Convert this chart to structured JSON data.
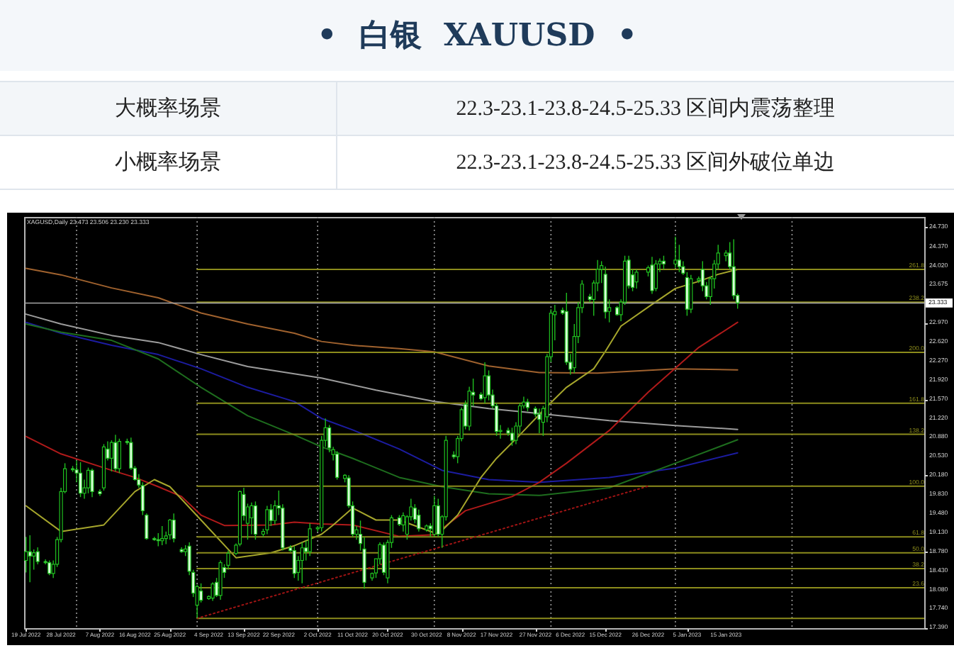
{
  "chart_data": {
    "type": "candlestick",
    "title": "• 白银 XAUUSD •",
    "annotations": [
      "大概率场景",
      "22.3-23.1-23.8-24.5-25.33 区间内震荡整理",
      "小概率场景",
      "22.3-23.1-23.8-24.5-25.33 区间外破位单边",
      "XAGUSD,Daily  23.473 23.506 23.230 23.333"
    ],
    "xlim": [
      "2022-07-18T12:00",
      "2023-03-07"
    ],
    "xticks": [
      {
        "value": "2022-07-19",
        "label": "19 Jul 2022"
      },
      {
        "value": "2022-07-28",
        "label": "28 Jul 2022"
      },
      {
        "value": "2022-08-07",
        "label": "7 Aug 2022"
      },
      {
        "value": "2022-08-16",
        "label": "16 Aug 2022"
      },
      {
        "value": "2022-08-25",
        "label": "25 Aug 2022"
      },
      {
        "value": "2022-09-04",
        "label": "4 Sep 2022"
      },
      {
        "value": "2022-09-13",
        "label": "13 Sep 2022"
      },
      {
        "value": "2022-09-22",
        "label": "22 Sep 2022"
      },
      {
        "value": "2022-10-02",
        "label": "2 Oct 2022"
      },
      {
        "value": "2022-10-11",
        "label": "11 Oct 2022"
      },
      {
        "value": "2022-10-20",
        "label": "20 Oct 2022"
      },
      {
        "value": "2022-10-30",
        "label": "30 Oct 2022"
      },
      {
        "value": "2022-11-08",
        "label": "8 Nov 2022"
      },
      {
        "value": "2022-11-17",
        "label": "17 Nov 2022"
      },
      {
        "value": "2022-11-27",
        "label": "27 Nov 2022"
      },
      {
        "value": "2022-12-06",
        "label": "6 Dec 2022"
      },
      {
        "value": "2022-12-15",
        "label": "15 Dec 2022"
      },
      {
        "value": "2022-12-26",
        "label": "26 Dec 2022"
      },
      {
        "value": "2023-01-05",
        "label": "5 Jan 2023"
      },
      {
        "value": "2023-01-15",
        "label": "15 Jan 2023"
      }
    ],
    "ylim": [
      17.38,
      24.91
    ],
    "yticks": [
      {
        "value": 24.73,
        "label": "24.730"
      },
      {
        "value": 24.37,
        "label": "24.370"
      },
      {
        "value": 24.02,
        "label": "24.020"
      },
      {
        "value": 23.675,
        "label": "23.675"
      },
      {
        "value": 22.97,
        "label": "22.970"
      },
      {
        "value": 22.62,
        "label": "22.620"
      },
      {
        "value": 22.27,
        "label": "22.270"
      },
      {
        "value": 21.92,
        "label": "21.920"
      },
      {
        "value": 21.57,
        "label": "21.570"
      },
      {
        "value": 21.22,
        "label": "21.220"
      },
      {
        "value": 20.88,
        "label": "20.880"
      },
      {
        "value": 20.53,
        "label": "20.530"
      },
      {
        "value": 20.18,
        "label": "20.180"
      },
      {
        "value": 19.83,
        "label": "19.830"
      },
      {
        "value": 19.48,
        "label": "19.480"
      },
      {
        "value": 19.13,
        "label": "19.130"
      },
      {
        "value": 18.78,
        "label": "18.780"
      },
      {
        "value": 18.43,
        "label": "18.430"
      },
      {
        "value": 18.08,
        "label": "18.080"
      },
      {
        "value": 17.74,
        "label": "17.740"
      },
      {
        "value": 17.39,
        "label": "17.390"
      }
    ],
    "ref_lines": [
      {
        "axis": "x",
        "value": "2022-08-01",
        "color": "#9a9a9a",
        "line_style": "dotted"
      },
      {
        "axis": "x",
        "value": "2022-09-01",
        "color": "#9a9a9a",
        "line_style": "dotted"
      },
      {
        "axis": "x",
        "value": "2022-10-02",
        "color": "#9a9a9a",
        "line_style": "dotted"
      },
      {
        "axis": "x",
        "value": "2022-11-01",
        "color": "#9a9a9a",
        "line_style": "dotted"
      },
      {
        "axis": "x",
        "value": "2022-12-01",
        "color": "#9a9a9a",
        "line_style": "dotted"
      },
      {
        "axis": "x",
        "value": "2023-01-02",
        "color": "#9a9a9a",
        "line_style": "dotted"
      },
      {
        "axis": "x",
        "value": "2023-02-01",
        "color": "#9a9a9a",
        "line_style": "dotted"
      },
      {
        "axis": "y",
        "value": 23.333,
        "label": "23.333",
        "color": "#a8a8a8"
      }
    ],
    "series": [
      {
        "type": "line",
        "color": "#a0622e",
        "x": [
          "2022-07-19",
          "2022-07-28",
          "2022-08-10",
          "2022-08-22",
          "2022-09-02",
          "2022-09-14",
          "2022-09-26",
          "2022-10-03",
          "2022-10-11",
          "2022-10-23",
          "2022-11-01",
          "2022-11-15",
          "2022-11-28",
          "2022-12-13",
          "2023-01-02",
          "2023-01-18"
        ],
        "values": [
          23.97,
          23.85,
          23.61,
          23.43,
          23.15,
          22.95,
          22.78,
          22.63,
          22.56,
          22.5,
          22.44,
          22.18,
          22.06,
          22.05,
          22.13,
          22.11
        ]
      },
      {
        "type": "line",
        "color": "#9c9c9c",
        "x": [
          "2022-07-19",
          "2022-07-28",
          "2022-08-10",
          "2022-08-22",
          "2022-09-02",
          "2022-09-14",
          "2022-10-03",
          "2022-10-17",
          "2022-11-01",
          "2022-11-15",
          "2022-11-28",
          "2022-12-16",
          "2023-01-02",
          "2023-01-18"
        ],
        "values": [
          23.13,
          22.95,
          22.74,
          22.61,
          22.39,
          22.17,
          21.96,
          21.74,
          21.53,
          21.4,
          21.31,
          21.18,
          21.09,
          21.02
        ]
      },
      {
        "type": "line",
        "color": "#1c1ca0",
        "x": [
          "2022-07-19",
          "2022-07-28",
          "2022-08-10",
          "2022-08-22",
          "2022-09-02",
          "2022-09-14",
          "2022-09-26",
          "2022-10-03",
          "2022-10-11",
          "2022-10-23",
          "2022-11-03",
          "2022-11-15",
          "2022-11-28",
          "2022-12-16",
          "2023-01-02",
          "2023-01-18"
        ],
        "values": [
          22.98,
          22.78,
          22.56,
          22.39,
          22.13,
          21.79,
          21.53,
          21.22,
          21.01,
          20.66,
          20.27,
          20.1,
          20.05,
          20.14,
          20.31,
          20.59
        ]
      },
      {
        "type": "line",
        "color": "#1e6e1e",
        "x": [
          "2022-07-19",
          "2022-07-28",
          "2022-08-10",
          "2022-08-22",
          "2022-09-02",
          "2022-09-14",
          "2022-09-26",
          "2022-10-03",
          "2022-10-11",
          "2022-10-23",
          "2022-11-03",
          "2022-11-15",
          "2022-11-28",
          "2022-12-16",
          "2023-01-02",
          "2023-01-18"
        ],
        "values": [
          22.95,
          22.8,
          22.65,
          22.31,
          21.79,
          21.27,
          20.92,
          20.7,
          20.49,
          20.14,
          19.97,
          19.84,
          19.81,
          19.95,
          20.4,
          20.83
        ]
      },
      {
        "type": "line",
        "color": "#b01a1a",
        "x": [
          "2022-07-19",
          "2022-07-28",
          "2022-08-10",
          "2022-08-16",
          "2022-08-22",
          "2022-08-28",
          "2022-09-02",
          "2022-09-08",
          "2022-09-20",
          "2022-09-26",
          "2022-10-03",
          "2022-10-11",
          "2022-10-23",
          "2022-11-01",
          "2022-11-09",
          "2022-11-21",
          "2022-11-28",
          "2022-12-05",
          "2022-12-16",
          "2022-12-26",
          "2023-01-08",
          "2023-01-18"
        ],
        "values": [
          20.89,
          20.57,
          20.27,
          20.14,
          19.97,
          19.79,
          19.45,
          19.26,
          19.27,
          19.32,
          19.29,
          19.27,
          19.06,
          19.09,
          19.53,
          19.79,
          20.05,
          20.4,
          21.0,
          21.7,
          22.52,
          22.98
        ]
      },
      {
        "type": "line",
        "color": "#a6a62c",
        "x": [
          "2022-07-19",
          "2022-07-28",
          "2022-08-08",
          "2022-08-16",
          "2022-08-21",
          "2022-08-25",
          "2022-09-02",
          "2022-09-11",
          "2022-09-20",
          "2022-09-26",
          "2022-10-03",
          "2022-10-06",
          "2022-10-11",
          "2022-10-17",
          "2022-10-23",
          "2022-11-02",
          "2022-11-07",
          "2022-11-13",
          "2022-11-17",
          "2022-11-23",
          "2022-11-30",
          "2022-12-05",
          "2022-12-12",
          "2022-12-15",
          "2022-12-19",
          "2022-12-26",
          "2023-01-02",
          "2023-01-08",
          "2023-01-13",
          "2023-01-18"
        ],
        "values": [
          19.62,
          19.15,
          19.27,
          19.88,
          20.1,
          19.97,
          19.36,
          18.67,
          18.76,
          18.89,
          19.1,
          19.27,
          19.58,
          19.36,
          19.36,
          19.1,
          19.45,
          20.14,
          20.49,
          20.92,
          21.44,
          21.79,
          22.13,
          22.45,
          22.91,
          23.26,
          23.6,
          23.73,
          23.86,
          23.95
        ]
      },
      {
        "type": "line",
        "name": "261.8",
        "color": "#8c8c1c",
        "x": [
          "2022-09-01",
          "2023-03-07"
        ],
        "values": [
          23.95,
          23.95
        ]
      },
      {
        "type": "line",
        "name": "238.2",
        "color": "#8c8c1c",
        "x": [
          "2022-09-01",
          "2023-03-07"
        ],
        "values": [
          23.35,
          23.35
        ]
      },
      {
        "type": "line",
        "name": "200.0",
        "color": "#8c8c1c",
        "x": [
          "2022-09-01",
          "2023-03-07"
        ],
        "values": [
          22.43,
          22.43
        ]
      },
      {
        "type": "line",
        "name": "161.8",
        "color": "#8c8c1c",
        "x": [
          "2022-09-01",
          "2023-03-07"
        ],
        "values": [
          21.5,
          21.5
        ]
      },
      {
        "type": "line",
        "name": "138.2",
        "color": "#8c8c1c",
        "x": [
          "2022-09-01",
          "2023-03-07"
        ],
        "values": [
          20.93,
          20.93
        ]
      },
      {
        "type": "line",
        "name": "100.0",
        "color": "#8c8c1c",
        "x": [
          "2022-09-01",
          "2023-03-07"
        ],
        "values": [
          19.98,
          19.98
        ]
      },
      {
        "type": "line",
        "name": "61.8",
        "color": "#8c8c1c",
        "x": [
          "2022-09-01",
          "2023-03-07"
        ],
        "values": [
          19.05,
          19.05
        ]
      },
      {
        "type": "line",
        "name": "50.0",
        "color": "#8c8c1c",
        "x": [
          "2022-09-01",
          "2023-03-07"
        ],
        "values": [
          18.76,
          18.76
        ]
      },
      {
        "type": "line",
        "name": "38.2",
        "color": "#8c8c1c",
        "x": [
          "2022-09-01",
          "2023-03-07"
        ],
        "values": [
          18.47,
          18.47
        ]
      },
      {
        "type": "line",
        "name": "23.6",
        "color": "#8c8c1c",
        "x": [
          "2022-09-01",
          "2023-03-07"
        ],
        "values": [
          18.12,
          18.12
        ]
      },
      {
        "type": "line",
        "color": "#8c8c1c",
        "x": [
          "2022-09-01",
          "2023-03-07"
        ],
        "values": [
          17.56,
          17.56
        ]
      },
      {
        "type": "line",
        "color": "#a01414",
        "line_style": "dotted",
        "x": [
          "2022-09-01",
          "2022-12-26"
        ],
        "values": [
          17.56,
          19.98
        ]
      },
      {
        "type": "candlestick",
        "color": "#1fbf1f",
        "x": [
          "2022-07-19",
          "2022-07-20",
          "2022-07-21",
          "2022-07-22",
          "2022-07-24",
          "2022-07-25",
          "2022-07-26",
          "2022-07-27",
          "2022-07-28",
          "2022-07-29",
          "2022-07-31",
          "2022-08-01",
          "2022-08-02",
          "2022-08-03",
          "2022-08-04",
          "2022-08-05",
          "2022-08-07",
          "2022-08-08",
          "2022-08-09",
          "2022-08-10",
          "2022-08-11",
          "2022-08-12",
          "2022-08-14",
          "2022-08-15",
          "2022-08-16",
          "2022-08-17",
          "2022-08-18",
          "2022-08-19",
          "2022-08-21",
          "2022-08-22",
          "2022-08-23",
          "2022-08-24",
          "2022-08-25",
          "2022-08-26",
          "2022-08-28",
          "2022-08-29",
          "2022-08-30",
          "2022-08-31",
          "2022-09-01",
          "2022-09-02",
          "2022-09-04",
          "2022-09-05",
          "2022-09-06",
          "2022-09-07",
          "2022-09-08",
          "2022-09-09",
          "2022-09-11",
          "2022-09-12",
          "2022-09-13",
          "2022-09-14",
          "2022-09-15",
          "2022-09-16",
          "2022-09-18",
          "2022-09-19",
          "2022-09-20",
          "2022-09-21",
          "2022-09-22",
          "2022-09-23",
          "2022-09-25",
          "2022-09-26",
          "2022-09-27",
          "2022-09-28",
          "2022-09-29",
          "2022-09-30",
          "2022-10-02",
          "2022-10-03",
          "2022-10-04",
          "2022-10-05",
          "2022-10-06",
          "2022-10-07",
          "2022-10-09",
          "2022-10-10",
          "2022-10-11",
          "2022-10-12",
          "2022-10-13",
          "2022-10-14",
          "2022-10-16",
          "2022-10-17",
          "2022-10-18",
          "2022-10-19",
          "2022-10-20",
          "2022-10-21",
          "2022-10-23",
          "2022-10-24",
          "2022-10-25",
          "2022-10-26",
          "2022-10-27",
          "2022-10-28",
          "2022-10-30",
          "2022-10-31",
          "2022-11-01",
          "2022-11-02",
          "2022-11-03",
          "2022-11-04",
          "2022-11-06",
          "2022-11-07",
          "2022-11-08",
          "2022-11-09",
          "2022-11-10",
          "2022-11-11",
          "2022-11-13",
          "2022-11-14",
          "2022-11-15",
          "2022-11-16",
          "2022-11-17",
          "2022-11-18",
          "2022-11-20",
          "2022-11-21",
          "2022-11-22",
          "2022-11-23",
          "2022-11-24",
          "2022-11-25",
          "2022-11-27",
          "2022-11-28",
          "2022-11-29",
          "2022-11-30",
          "2022-12-01",
          "2022-12-02",
          "2022-12-04",
          "2022-12-05",
          "2022-12-06",
          "2022-12-07",
          "2022-12-08",
          "2022-12-09",
          "2022-12-11",
          "2022-12-12",
          "2022-12-13",
          "2022-12-14",
          "2022-12-15",
          "2022-12-16",
          "2022-12-18",
          "2022-12-19",
          "2022-12-20",
          "2022-12-21",
          "2022-12-22",
          "2022-12-23",
          "2022-12-26",
          "2022-12-27",
          "2022-12-28",
          "2022-12-29",
          "2022-12-30",
          "2023-01-02",
          "2023-01-03",
          "2023-01-04",
          "2023-01-05",
          "2023-01-06",
          "2023-01-08",
          "2023-01-09",
          "2023-01-10",
          "2023-01-11",
          "2023-01-12",
          "2023-01-13",
          "2023-01-15",
          "2023-01-16",
          "2023-01-17",
          "2023-01-18"
        ],
        "ohlc": [
          [
            18.62,
            19.05,
            18.4,
            18.78
          ],
          [
            18.78,
            19.08,
            18.22,
            18.7
          ],
          [
            18.7,
            18.82,
            18.45,
            18.76
          ],
          [
            18.78,
            18.86,
            18.55,
            18.6
          ],
          [
            18.6,
            18.64,
            18.55,
            18.58
          ],
          [
            18.58,
            18.62,
            18.35,
            18.38
          ],
          [
            18.38,
            18.62,
            18.3,
            18.55
          ],
          [
            18.55,
            19.05,
            18.5,
            19.0
          ],
          [
            19.0,
            19.95,
            18.95,
            19.88
          ],
          [
            19.88,
            20.4,
            19.85,
            20.3
          ],
          [
            20.3,
            20.35,
            20.24,
            20.28
          ],
          [
            20.28,
            20.45,
            20.05,
            20.22
          ],
          [
            20.22,
            20.42,
            19.78,
            19.85
          ],
          [
            19.85,
            20.1,
            19.75,
            19.95
          ],
          [
            19.95,
            20.32,
            19.85,
            20.27
          ],
          [
            20.27,
            20.3,
            19.78,
            19.88
          ],
          [
            19.88,
            19.92,
            19.8,
            19.84
          ],
          [
            19.95,
            20.75,
            19.9,
            20.7
          ],
          [
            20.66,
            20.8,
            20.45,
            20.49
          ],
          [
            20.49,
            20.82,
            20.25,
            20.78
          ],
          [
            20.78,
            20.92,
            20.25,
            20.3
          ],
          [
            20.3,
            20.85,
            20.22,
            20.8
          ],
          [
            20.8,
            20.85,
            20.74,
            20.78
          ],
          [
            20.78,
            20.87,
            20.28,
            20.31
          ],
          [
            20.31,
            20.35,
            20.08,
            20.1
          ],
          [
            20.1,
            20.2,
            19.95,
            20.0
          ],
          [
            19.99,
            20.05,
            19.45,
            19.53
          ],
          [
            19.45,
            19.48,
            19.0,
            19.02
          ],
          [
            19.02,
            19.05,
            18.98,
            19.0
          ],
          [
            19.0,
            19.12,
            18.88,
            18.98
          ],
          [
            18.98,
            19.25,
            18.9,
            19.02
          ],
          [
            19.02,
            19.15,
            18.92,
            19.07
          ],
          [
            19.09,
            19.38,
            19.0,
            19.36
          ],
          [
            19.36,
            19.48,
            18.95,
            19.02
          ],
          [
            18.82,
            18.86,
            18.76,
            18.78
          ],
          [
            18.78,
            18.9,
            18.7,
            18.83
          ],
          [
            18.88,
            18.95,
            18.35,
            18.42
          ],
          [
            18.4,
            18.45,
            17.95,
            18.02
          ],
          [
            17.8,
            18.18,
            17.56,
            18.14
          ],
          [
            18.06,
            18.2,
            17.85,
            17.89
          ],
          [
            17.92,
            17.98,
            17.9,
            17.96
          ],
          [
            17.93,
            18.22,
            17.88,
            18.19
          ],
          [
            18.22,
            18.3,
            17.95,
            17.98
          ],
          [
            17.98,
            18.62,
            17.9,
            18.58
          ],
          [
            18.49,
            18.55,
            18.3,
            18.4
          ],
          [
            18.53,
            18.8,
            18.45,
            18.75
          ],
          [
            18.75,
            18.93,
            18.72,
            18.9
          ],
          [
            18.92,
            19.9,
            18.88,
            19.88
          ],
          [
            19.83,
            19.95,
            19.35,
            19.44
          ],
          [
            19.3,
            19.66,
            19.0,
            19.6
          ],
          [
            19.4,
            19.68,
            19.1,
            19.62
          ],
          [
            19.62,
            19.7,
            19.0,
            19.1
          ],
          [
            19.1,
            19.2,
            19.05,
            19.15
          ],
          [
            19.18,
            19.62,
            19.1,
            19.55
          ],
          [
            19.55,
            19.65,
            19.25,
            19.35
          ],
          [
            19.35,
            19.72,
            19.28,
            19.62
          ],
          [
            19.62,
            19.9,
            19.45,
            19.58
          ],
          [
            19.58,
            19.65,
            18.8,
            18.85
          ],
          [
            18.85,
            18.9,
            18.78,
            18.8
          ],
          [
            18.8,
            18.88,
            18.3,
            18.38
          ],
          [
            18.4,
            18.7,
            18.25,
            18.62
          ],
          [
            18.62,
            18.95,
            18.2,
            18.85
          ],
          [
            18.85,
            18.98,
            18.62,
            18.78
          ],
          [
            18.78,
            19.3,
            18.7,
            19.2
          ],
          [
            19.2,
            19.25,
            19.15,
            19.22
          ],
          [
            19.22,
            20.9,
            19.15,
            20.82
          ],
          [
            20.82,
            21.22,
            20.7,
            21.05
          ],
          [
            21.05,
            21.1,
            20.6,
            20.68
          ],
          [
            20.56,
            20.7,
            20.45,
            20.65
          ],
          [
            20.57,
            20.62,
            20.1,
            20.14
          ],
          [
            20.12,
            20.2,
            20.05,
            20.18
          ],
          [
            20.13,
            20.18,
            19.58,
            19.62
          ],
          [
            19.62,
            19.7,
            19.05,
            19.1
          ],
          [
            19.1,
            19.25,
            19.0,
            19.18
          ],
          [
            19.1,
            19.35,
            18.8,
            18.93
          ],
          [
            18.83,
            19.05,
            18.1,
            18.22
          ],
          [
            18.3,
            18.4,
            18.25,
            18.38
          ],
          [
            18.39,
            18.65,
            18.3,
            18.65
          ],
          [
            18.65,
            18.95,
            18.55,
            18.91
          ],
          [
            18.9,
            18.95,
            18.35,
            18.4
          ],
          [
            18.3,
            19.0,
            18.2,
            18.95
          ],
          [
            18.95,
            19.45,
            18.85,
            19.4
          ],
          [
            19.4,
            19.45,
            19.25,
            19.28
          ],
          [
            19.27,
            19.5,
            19.15,
            19.44
          ],
          [
            19.1,
            19.45,
            19.0,
            19.42
          ],
          [
            19.42,
            19.75,
            19.35,
            19.6
          ],
          [
            19.58,
            19.65,
            19.3,
            19.37
          ],
          [
            19.45,
            19.55,
            19.15,
            19.2
          ],
          [
            19.18,
            19.28,
            19.15,
            19.25
          ],
          [
            19.25,
            19.3,
            19.05,
            19.2
          ],
          [
            19.1,
            19.8,
            19.05,
            19.62
          ],
          [
            19.62,
            19.75,
            19.05,
            19.1
          ],
          [
            19.1,
            19.45,
            18.85,
            19.42
          ],
          [
            19.42,
            20.9,
            19.35,
            20.82
          ],
          [
            20.55,
            20.62,
            20.48,
            20.52
          ],
          [
            20.52,
            20.9,
            20.4,
            20.85
          ],
          [
            20.85,
            21.42,
            20.8,
            21.38
          ],
          [
            21.48,
            21.55,
            21.02,
            21.08
          ],
          [
            21.08,
            21.8,
            21.0,
            21.72
          ],
          [
            21.7,
            21.95,
            21.45,
            21.65
          ],
          [
            21.66,
            21.7,
            21.55,
            21.58
          ],
          [
            21.6,
            22.25,
            21.5,
            22.0
          ],
          [
            22.0,
            22.1,
            21.55,
            21.65
          ],
          [
            21.65,
            21.75,
            21.4,
            21.45
          ],
          [
            21.45,
            21.5,
            20.9,
            20.98
          ],
          [
            20.98,
            21.1,
            20.85,
            21.0
          ],
          [
            21.0,
            21.05,
            20.9,
            20.95
          ],
          [
            20.95,
            21.05,
            20.72,
            20.82
          ],
          [
            20.82,
            21.15,
            20.75,
            21.08
          ],
          [
            21.08,
            21.5,
            20.95,
            21.45
          ],
          [
            21.45,
            21.62,
            21.4,
            21.52
          ],
          [
            21.52,
            21.58,
            21.35,
            21.42
          ],
          [
            21.4,
            21.44,
            21.25,
            21.3
          ],
          [
            21.3,
            21.4,
            20.95,
            21.2
          ],
          [
            21.15,
            21.45,
            20.9,
            21.4
          ],
          [
            21.25,
            22.4,
            21.15,
            22.35
          ],
          [
            22.35,
            23.22,
            22.25,
            23.15
          ],
          [
            23.12,
            23.3,
            22.65,
            23.18
          ],
          [
            23.2,
            23.25,
            23.12,
            23.15
          ],
          [
            23.18,
            23.52,
            22.2,
            22.25
          ],
          [
            22.25,
            22.4,
            22.02,
            22.12
          ],
          [
            22.15,
            22.95,
            22.05,
            22.72
          ],
          [
            22.72,
            23.35,
            22.6,
            23.25
          ],
          [
            23.25,
            23.75,
            23.15,
            23.68
          ],
          [
            23.45,
            23.5,
            23.35,
            23.4
          ],
          [
            23.4,
            23.75,
            23.1,
            23.7
          ],
          [
            23.7,
            24.12,
            23.55,
            23.95
          ],
          [
            23.95,
            24.1,
            23.7,
            24.02
          ],
          [
            23.86,
            24.0,
            23.05,
            23.17
          ],
          [
            23.18,
            23.4,
            22.98,
            23.25
          ],
          [
            23.25,
            23.28,
            23.1,
            23.12
          ],
          [
            23.12,
            23.4,
            23.0,
            23.35
          ],
          [
            23.35,
            24.2,
            23.3,
            24.1
          ],
          [
            24.12,
            24.2,
            23.6,
            23.65
          ],
          [
            23.85,
            23.95,
            23.55,
            23.62
          ],
          [
            23.72,
            23.95,
            23.6,
            23.9
          ],
          [
            23.9,
            24.02,
            23.82,
            23.98
          ],
          [
            24.03,
            24.18,
            23.5,
            23.56
          ],
          [
            23.6,
            24.12,
            23.55,
            24.05
          ],
          [
            24.05,
            24.15,
            23.9,
            24.1
          ],
          [
            24.1,
            24.2,
            23.95,
            24.05
          ],
          [
            24.05,
            24.55,
            23.98,
            24.12
          ],
          [
            24.12,
            24.4,
            23.9,
            24.0
          ],
          [
            24.0,
            24.1,
            23.85,
            23.88
          ],
          [
            23.8,
            23.9,
            23.1,
            23.22
          ],
          [
            23.22,
            23.85,
            23.15,
            23.78
          ],
          [
            23.75,
            23.82,
            23.7,
            23.78
          ],
          [
            23.95,
            24.1,
            23.55,
            23.65
          ],
          [
            23.65,
            23.72,
            23.4,
            23.45
          ],
          [
            23.45,
            23.82,
            23.3,
            23.78
          ],
          [
            23.78,
            24.12,
            23.6,
            24.05
          ],
          [
            24.05,
            24.4,
            23.95,
            24.25
          ],
          [
            24.2,
            24.3,
            24.1,
            24.25
          ],
          [
            24.25,
            24.45,
            23.95,
            24.0
          ],
          [
            24.0,
            24.5,
            23.4,
            23.47
          ],
          [
            23.473,
            23.506,
            23.23,
            23.333
          ]
        ],
        "colors": [
          "#000000",
          "#d9ffd9",
          "#000000",
          "#d9ffd9",
          "#d9ffd9",
          "#d9ffd9",
          "#000000",
          "#000000",
          "#000000",
          "#000000",
          "#d9ffd9",
          "#d9ffd9",
          "#d9ffd9",
          "#000000",
          "#000000",
          "#d9ffd9",
          "#d9ffd9",
          "#000000",
          "#d9ffd9",
          "#000000",
          "#d9ffd9",
          "#000000",
          "#d9ffd9",
          "#d9ffd9",
          "#d9ffd9",
          "#d9ffd9",
          "#d9ffd9",
          "#d9ffd9",
          "#d9ffd9",
          "#d9ffd9",
          "#000000",
          "#000000",
          "#000000",
          "#d9ffd9",
          "#d9ffd9",
          "#000000",
          "#d9ffd9",
          "#d9ffd9",
          "#000000",
          "#d9ffd9",
          "#000000",
          "#000000",
          "#d9ffd9",
          "#000000",
          "#d9ffd9",
          "#000000",
          "#000000",
          "#000000",
          "#d9ffd9",
          "#000000",
          "#000000",
          "#d9ffd9",
          "#000000",
          "#000000",
          "#d9ffd9",
          "#000000",
          "#d9ffd9",
          "#d9ffd9",
          "#d9ffd9",
          "#d9ffd9",
          "#000000",
          "#000000",
          "#d9ffd9",
          "#000000",
          "#000000",
          "#000000",
          "#000000",
          "#d9ffd9",
          "#000000",
          "#d9ffd9",
          "#000000",
          "#d9ffd9",
          "#d9ffd9",
          "#000000",
          "#d9ffd9",
          "#d9ffd9",
          "#000000",
          "#000000",
          "#000000",
          "#d9ffd9",
          "#000000",
          "#000000",
          "#d9ffd9",
          "#000000",
          "#000000",
          "#000000",
          "#d9ffd9",
          "#d9ffd9",
          "#000000",
          "#d9ffd9",
          "#000000",
          "#d9ffd9",
          "#000000",
          "#000000",
          "#d9ffd9",
          "#000000",
          "#000000",
          "#d9ffd9",
          "#000000",
          "#d9ffd9",
          "#d9ffd9",
          "#000000",
          "#d9ffd9",
          "#d9ffd9",
          "#d9ffd9",
          "#000000",
          "#d9ffd9",
          "#d9ffd9",
          "#000000",
          "#000000",
          "#000000",
          "#d9ffd9",
          "#d9ffd9",
          "#d9ffd9",
          "#000000",
          "#000000",
          "#000000",
          "#000000",
          "#d9ffd9",
          "#d9ffd9",
          "#d9ffd9",
          "#000000",
          "#000000",
          "#000000",
          "#d9ffd9",
          "#000000",
          "#000000",
          "#000000",
          "#d9ffd9",
          "#000000",
          "#d9ffd9",
          "#000000",
          "#000000",
          "#d9ffd9",
          "#d9ffd9",
          "#000000",
          "#000000",
          "#d9ffd9",
          "#000000",
          "#000000",
          "#d9ffd9",
          "#000000",
          "#d9ffd9",
          "#d9ffd9",
          "#d9ffd9",
          "#000000",
          "#000000",
          "#d9ffd9",
          "#d9ffd9",
          "#000000",
          "#000000",
          "#000000",
          "#000000",
          "#d9ffd9",
          "#d9ffd9",
          "#d9ffd9"
        ]
      }
    ]
  }
}
